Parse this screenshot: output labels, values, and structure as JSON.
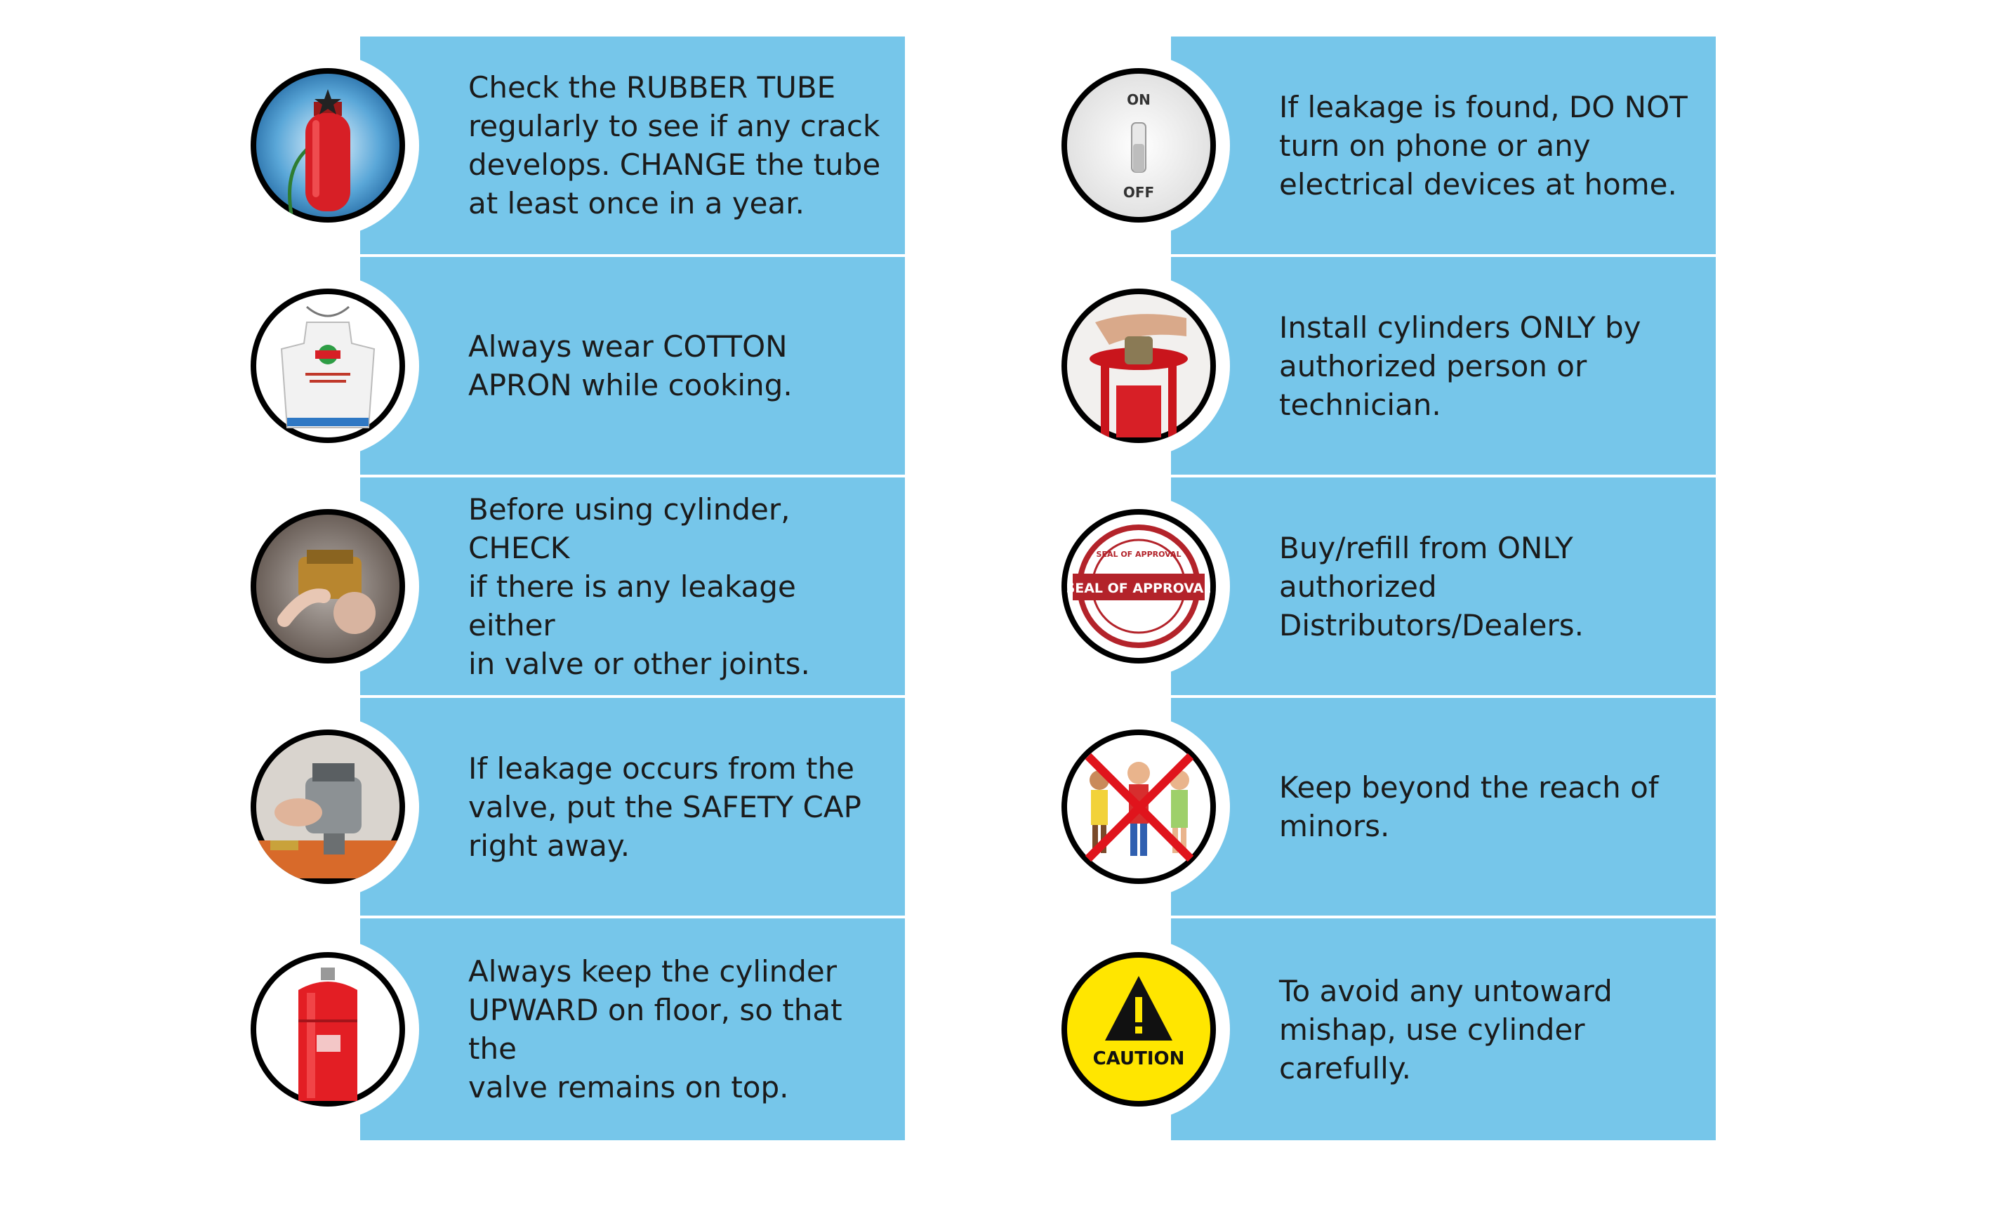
{
  "left_column": [
    {
      "text": "Check the RUBBER TUBE\nregularly to see if any crack\ndevelops. CHANGE the tube\nat least once in a year.",
      "icon": "gas-cylinder-tube-icon"
    },
    {
      "text": "Always wear COTTON\nAPRON while cooking.",
      "icon": "cotton-apron-icon"
    },
    {
      "text": "Before using cylinder, CHECK\nif there is any leakage either\nin valve or other joints.",
      "icon": "valve-joint-icon"
    },
    {
      "text": "If leakage occurs from the\nvalve, put the SAFETY CAP\nright away.",
      "icon": "safety-cap-icon"
    },
    {
      "text": "Always keep the cylinder\nUPWARD on floor, so that the\nvalve remains on top.",
      "icon": "upright-cylinder-icon"
    }
  ],
  "right_column": [
    {
      "text": "If leakage is found, DO NOT\nturn on phone or any\nelectrical devices at home.",
      "icon": "power-switch-icon",
      "switch_on": "ON",
      "switch_off": "OFF"
    },
    {
      "text": "Install cylinders ONLY by\nauthorized person or\ntechnician.",
      "icon": "installing-cylinder-icon"
    },
    {
      "text": "Buy/refill from ONLY\nauthorized\nDistributors/Dealers.",
      "icon": "seal-of-approval-icon",
      "seal_main": "SEAL OF APPROVAL",
      "seal_ring": "SEAL OF APPROVAL"
    },
    {
      "text": "Keep beyond the reach of\nminors.",
      "icon": "no-children-icon"
    },
    {
      "text": "To avoid any untoward\nmishap, use cylinder\ncarefully.",
      "icon": "caution-icon",
      "caution_label": "CAUTION"
    }
  ],
  "colors": {
    "card": "#76c6ea",
    "ring": "#ffffff",
    "icon_border": "#000000",
    "text": "#1b1b1b",
    "cylinder_red": "#d71f26",
    "caution_yellow": "#ffe600"
  }
}
